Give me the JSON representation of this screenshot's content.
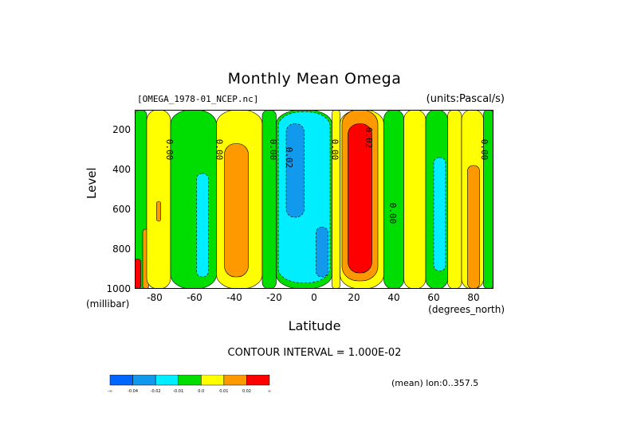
{
  "title": "Monthly Mean Omega",
  "file_label": "[OMEGA_1978-01_NCEP.nc]",
  "units_label": "(units:Pascal/s)",
  "contour_interval": "CONTOUR INTERVAL = 1.000E-02",
  "mean_note": "(mean) lon:0..357.5",
  "chart_data": {
    "type": "heatmap",
    "title": "Monthly Mean Omega",
    "xlabel": "Latitude",
    "x_unit": "(degrees_north)",
    "ylabel": "Level",
    "y_unit": "(millibar)",
    "xlim": [
      -90,
      90
    ],
    "ylim": [
      1000,
      100
    ],
    "x_ticks": [
      "-80",
      "-60",
      "-40",
      "-20",
      "0",
      "20",
      "40",
      "60",
      "80"
    ],
    "y_ticks": [
      "200",
      "400",
      "600",
      "800",
      "1000"
    ],
    "contour_labels": [
      "0.00",
      "0.00",
      "0.00",
      "0.02",
      "0.00",
      "0.02",
      "0.00",
      "0.00"
    ],
    "colorbar": {
      "colors": [
        "#0066ff",
        "#1199ee",
        "#00eeff",
        "#00dd00",
        "#ffff00",
        "#ff9900",
        "#ff0000"
      ],
      "labels": [
        "-∞",
        "-0.04",
        "-0.02",
        "-0.01",
        "0.0",
        "0.01",
        "0.02",
        "∞"
      ]
    },
    "bands": [
      {
        "lat": [
          -90,
          -84
        ],
        "p": [
          100,
          1000
        ],
        "level": 3
      },
      {
        "lat": [
          -90,
          -87
        ],
        "p": [
          850,
          1000
        ],
        "level": 6
      },
      {
        "lat": [
          -86,
          -83
        ],
        "p": [
          700,
          1000
        ],
        "level": 5
      },
      {
        "lat": [
          -84,
          -72
        ],
        "p": [
          100,
          1000
        ],
        "level": 4
      },
      {
        "lat": [
          -79,
          -77
        ],
        "p": [
          560,
          660
        ],
        "level": 5
      },
      {
        "lat": [
          -72,
          -49
        ],
        "p": [
          100,
          1000
        ],
        "level": 3
      },
      {
        "lat": [
          -59,
          -53
        ],
        "p": [
          420,
          940
        ],
        "level": 2
      },
      {
        "lat": [
          -49,
          -26
        ],
        "p": [
          100,
          1000
        ],
        "level": 4
      },
      {
        "lat": [
          -45,
          -33
        ],
        "p": [
          270,
          940
        ],
        "level": 5
      },
      {
        "lat": [
          -26,
          -19
        ],
        "p": [
          100,
          1000
        ],
        "level": 3
      },
      {
        "lat": [
          -19,
          9
        ],
        "p": [
          100,
          1000
        ],
        "level": 3
      },
      {
        "lat": [
          -18,
          8
        ],
        "p": [
          110,
          970
        ],
        "level": 2
      },
      {
        "lat": [
          -14,
          -5
        ],
        "p": [
          170,
          640
        ],
        "level": 1
      },
      {
        "lat": [
          1,
          7
        ],
        "p": [
          690,
          940
        ],
        "level": 1
      },
      {
        "lat": [
          9,
          13
        ],
        "p": [
          100,
          1000
        ],
        "level": 4
      },
      {
        "lat": [
          13,
          35
        ],
        "p": [
          100,
          1000
        ],
        "level": 4
      },
      {
        "lat": [
          14,
          32
        ],
        "p": [
          100,
          960
        ],
        "level": 5
      },
      {
        "lat": [
          17,
          29
        ],
        "p": [
          170,
          920
        ],
        "level": 6
      },
      {
        "lat": [
          35,
          45
        ],
        "p": [
          100,
          1000
        ],
        "level": 3
      },
      {
        "lat": [
          45,
          56
        ],
        "p": [
          100,
          1000
        ],
        "level": 4
      },
      {
        "lat": [
          56,
          67
        ],
        "p": [
          100,
          1000
        ],
        "level": 3
      },
      {
        "lat": [
          60,
          66
        ],
        "p": [
          340,
          910
        ],
        "level": 2
      },
      {
        "lat": [
          67,
          74
        ],
        "p": [
          100,
          1000
        ],
        "level": 4
      },
      {
        "lat": [
          74,
          85
        ],
        "p": [
          100,
          1000
        ],
        "level": 4
      },
      {
        "lat": [
          77,
          83
        ],
        "p": [
          380,
          1000
        ],
        "level": 5
      },
      {
        "lat": [
          85,
          90
        ],
        "p": [
          100,
          1000
        ],
        "level": 3
      }
    ]
  }
}
